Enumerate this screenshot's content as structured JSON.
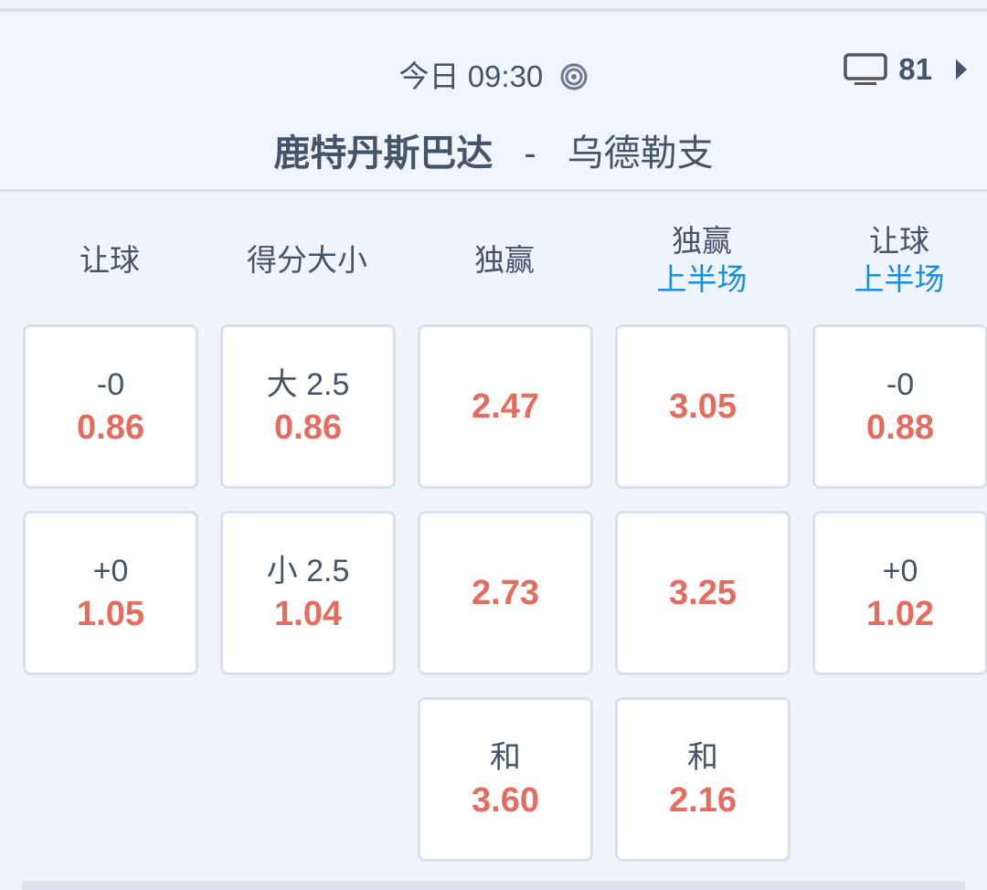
{
  "header": {
    "time": "今日 09:30",
    "live_icon": "target-icon",
    "tv_icon": "tv-icon",
    "tv_count": "81",
    "more_icon": "caret-right-icon",
    "home_team": "鹿特丹斯巴达",
    "separator": "-",
    "away_team": "乌德勒支"
  },
  "columns": [
    {
      "title": "让球",
      "sub": ""
    },
    {
      "title": "得分大小",
      "sub": ""
    },
    {
      "title": "独赢",
      "sub": ""
    },
    {
      "title": "独赢",
      "sub": "上半场"
    },
    {
      "title": "让球",
      "sub": "上半场"
    }
  ],
  "cells": [
    [
      {
        "label": "-0",
        "odd": "0.86"
      },
      {
        "label": "+0",
        "odd": "1.05"
      }
    ],
    [
      {
        "label": "大 2.5",
        "odd": "0.86"
      },
      {
        "label": "小 2.5",
        "odd": "1.04"
      }
    ],
    [
      {
        "label": "",
        "odd": "2.47"
      },
      {
        "label": "",
        "odd": "2.73"
      },
      {
        "label": "和",
        "odd": "3.60"
      }
    ],
    [
      {
        "label": "",
        "odd": "3.05"
      },
      {
        "label": "",
        "odd": "3.25"
      },
      {
        "label": "和",
        "odd": "2.16"
      }
    ],
    [
      {
        "label": "-0",
        "odd": "0.88"
      },
      {
        "label": "+0",
        "odd": "1.02"
      }
    ]
  ],
  "colors": {
    "odds": "#e46d5f",
    "accent": "#1a8de0",
    "text": "#44546a",
    "background": "#eff4fd"
  }
}
